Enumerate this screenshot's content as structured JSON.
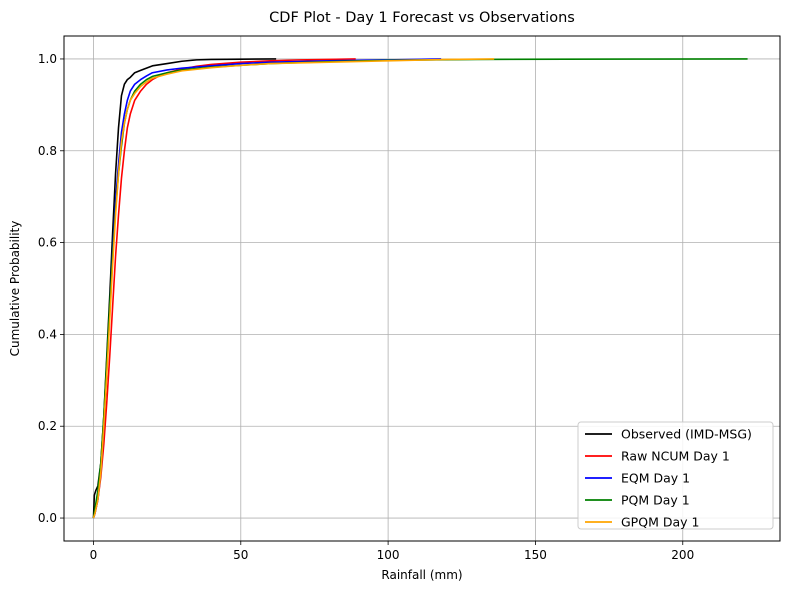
{
  "chart_data": {
    "type": "line",
    "title": "CDF Plot - Day 1 Forecast vs Observations",
    "xlabel": "Rainfall (mm)",
    "ylabel": "Cumulative Probability",
    "xlim": [
      -10,
      233
    ],
    "ylim": [
      -0.05,
      1.05
    ],
    "xticks": [
      0,
      50,
      100,
      150,
      200
    ],
    "yticks": [
      0.0,
      0.2,
      0.4,
      0.6,
      0.8,
      1.0
    ],
    "xtick_labels": [
      "0",
      "50",
      "100",
      "150",
      "200"
    ],
    "ytick_labels": [
      "0.0",
      "0.2",
      "0.4",
      "0.6",
      "0.8",
      "1.0"
    ],
    "grid": true,
    "legend_position": "lower-right",
    "series": [
      {
        "name": "Observed (IMD-MSG)",
        "color": "#000000",
        "x": [
          0,
          0.3,
          0.8,
          1.5,
          2.5,
          3.5,
          4.5,
          5.5,
          6.5,
          7.5,
          8.5,
          9.5,
          10.5,
          11.5,
          12.5,
          14,
          16,
          18,
          20,
          25,
          30,
          35,
          40,
          50,
          62
        ],
        "y": [
          0.0,
          0.05,
          0.06,
          0.07,
          0.12,
          0.22,
          0.35,
          0.48,
          0.62,
          0.75,
          0.85,
          0.92,
          0.945,
          0.955,
          0.96,
          0.97,
          0.975,
          0.98,
          0.985,
          0.99,
          0.995,
          0.998,
          0.999,
          0.9995,
          1.0
        ]
      },
      {
        "name": "Raw NCUM Day 1",
        "color": "#ff0000",
        "x": [
          0,
          0.5,
          1.5,
          2.5,
          3.5,
          4.5,
          5.5,
          6.5,
          7.5,
          8.5,
          9.5,
          10.5,
          11.5,
          12.5,
          14,
          16,
          18,
          20,
          22,
          25,
          30,
          35,
          40,
          50,
          60,
          70,
          80,
          89
        ],
        "y": [
          0.0,
          0.01,
          0.04,
          0.09,
          0.16,
          0.25,
          0.35,
          0.46,
          0.57,
          0.66,
          0.74,
          0.8,
          0.85,
          0.88,
          0.91,
          0.93,
          0.945,
          0.955,
          0.962,
          0.97,
          0.978,
          0.984,
          0.988,
          0.993,
          0.996,
          0.998,
          0.999,
          1.0
        ]
      },
      {
        "name": "EQM Day 1",
        "color": "#0000ff",
        "x": [
          0,
          0.5,
          1.5,
          2.5,
          3.5,
          4.5,
          5.5,
          6.5,
          7.5,
          8.5,
          9.5,
          10.5,
          11.5,
          12.5,
          14,
          16,
          18,
          20,
          25,
          30,
          40,
          50,
          60,
          80,
          100,
          118
        ],
        "y": [
          0.0,
          0.01,
          0.04,
          0.1,
          0.2,
          0.32,
          0.45,
          0.58,
          0.69,
          0.77,
          0.84,
          0.88,
          0.91,
          0.93,
          0.945,
          0.955,
          0.963,
          0.97,
          0.976,
          0.98,
          0.985,
          0.99,
          0.993,
          0.996,
          0.998,
          1.0
        ]
      },
      {
        "name": "PQM Day 1",
        "color": "#008000",
        "x": [
          0,
          0.5,
          1.5,
          2.5,
          3.5,
          4.5,
          5.5,
          6.5,
          7.5,
          8.5,
          9.5,
          10.5,
          11.5,
          12.5,
          14,
          16,
          18,
          20,
          25,
          30,
          40,
          50,
          60,
          80,
          100,
          130,
          160,
          190,
          222
        ],
        "y": [
          0.0,
          0.02,
          0.06,
          0.12,
          0.22,
          0.34,
          0.46,
          0.57,
          0.67,
          0.75,
          0.81,
          0.86,
          0.89,
          0.91,
          0.93,
          0.945,
          0.955,
          0.962,
          0.97,
          0.976,
          0.982,
          0.986,
          0.99,
          0.994,
          0.997,
          0.999,
          0.9995,
          0.9998,
          1.0
        ]
      },
      {
        "name": "GPQM Day 1",
        "color": "#ffa500",
        "x": [
          0,
          0.5,
          1.5,
          2.5,
          3.5,
          4.5,
          5.5,
          6.5,
          7.5,
          8.5,
          9.5,
          10.5,
          11.5,
          12.5,
          14,
          16,
          18,
          20,
          25,
          30,
          40,
          50,
          60,
          80,
          100,
          120,
          136
        ],
        "y": [
          0.0,
          0.01,
          0.04,
          0.1,
          0.2,
          0.31,
          0.43,
          0.55,
          0.66,
          0.75,
          0.82,
          0.86,
          0.89,
          0.91,
          0.925,
          0.94,
          0.95,
          0.958,
          0.967,
          0.974,
          0.981,
          0.986,
          0.99,
          0.993,
          0.996,
          0.999,
          1.0
        ]
      }
    ]
  }
}
